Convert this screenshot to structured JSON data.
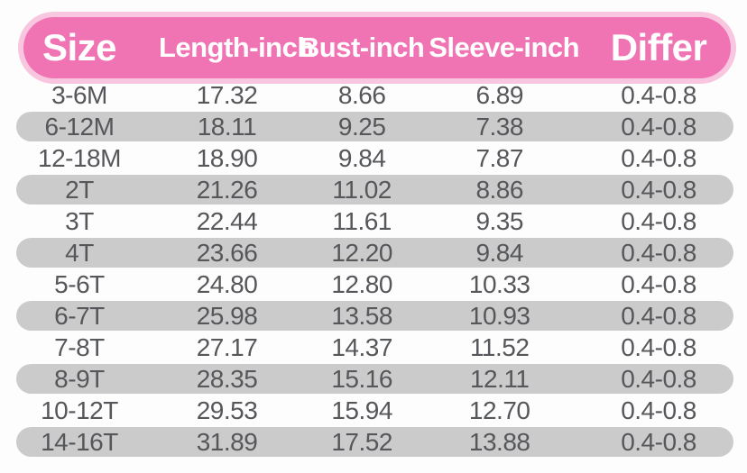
{
  "colors": {
    "header_bg": "#f073b4",
    "header_halo": "#f8c6df",
    "stripe_bg": "#cbcbcb",
    "text_color": "#56575a",
    "header_text": "#ffffff",
    "page_bg": "#fdfdfd"
  },
  "table": {
    "columns": [
      {
        "key": "size",
        "label": "Size"
      },
      {
        "key": "length",
        "label": "Length-inch"
      },
      {
        "key": "bust",
        "label": "Bust-inch"
      },
      {
        "key": "sleeve",
        "label": "Sleeve-inch"
      },
      {
        "key": "differ",
        "label": "Differ"
      }
    ],
    "rows": [
      {
        "size": "3-6M",
        "length": "17.32",
        "bust": "8.66",
        "sleeve": "6.89",
        "differ": "0.4-0.8"
      },
      {
        "size": "6-12M",
        "length": "18.11",
        "bust": "9.25",
        "sleeve": "7.38",
        "differ": "0.4-0.8"
      },
      {
        "size": "12-18M",
        "length": "18.90",
        "bust": "9.84",
        "sleeve": "7.87",
        "differ": "0.4-0.8"
      },
      {
        "size": "2T",
        "length": "21.26",
        "bust": "11.02",
        "sleeve": "8.86",
        "differ": "0.4-0.8"
      },
      {
        "size": "3T",
        "length": "22.44",
        "bust": "11.61",
        "sleeve": "9.35",
        "differ": "0.4-0.8"
      },
      {
        "size": "4T",
        "length": "23.66",
        "bust": "12.20",
        "sleeve": "9.84",
        "differ": "0.4-0.8"
      },
      {
        "size": "5-6T",
        "length": "24.80",
        "bust": "12.80",
        "sleeve": "10.33",
        "differ": "0.4-0.8"
      },
      {
        "size": "6-7T",
        "length": "25.98",
        "bust": "13.58",
        "sleeve": "10.93",
        "differ": "0.4-0.8"
      },
      {
        "size": "7-8T",
        "length": "27.17",
        "bust": "14.37",
        "sleeve": "11.52",
        "differ": "0.4-0.8"
      },
      {
        "size": "8-9T",
        "length": "28.35",
        "bust": "15.16",
        "sleeve": "12.11",
        "differ": "0.4-0.8"
      },
      {
        "size": "10-12T",
        "length": "29.53",
        "bust": "15.94",
        "sleeve": "12.70",
        "differ": "0.4-0.8"
      },
      {
        "size": "14-16T",
        "length": "31.89",
        "bust": "17.52",
        "sleeve": "13.88",
        "differ": "0.4-0.8"
      }
    ]
  },
  "chart_data": {
    "type": "table",
    "columns": [
      "Size",
      "Length-inch",
      "Bust-inch",
      "Sleeve-inch",
      "Differ"
    ],
    "rows": [
      [
        "3-6M",
        17.32,
        8.66,
        6.89,
        "0.4-0.8"
      ],
      [
        "6-12M",
        18.11,
        9.25,
        7.38,
        "0.4-0.8"
      ],
      [
        "12-18M",
        18.9,
        9.84,
        7.87,
        "0.4-0.8"
      ],
      [
        "2T",
        21.26,
        11.02,
        8.86,
        "0.4-0.8"
      ],
      [
        "3T",
        22.44,
        11.61,
        9.35,
        "0.4-0.8"
      ],
      [
        "4T",
        23.66,
        12.2,
        9.84,
        "0.4-0.8"
      ],
      [
        "5-6T",
        24.8,
        12.8,
        10.33,
        "0.4-0.8"
      ],
      [
        "6-7T",
        25.98,
        13.58,
        10.93,
        "0.4-0.8"
      ],
      [
        "7-8T",
        27.17,
        14.37,
        11.52,
        "0.4-0.8"
      ],
      [
        "8-9T",
        28.35,
        15.16,
        12.11,
        "0.4-0.8"
      ],
      [
        "10-12T",
        29.53,
        15.94,
        12.7,
        "0.4-0.8"
      ],
      [
        "14-16T",
        31.89,
        17.52,
        13.88,
        "0.4-0.8"
      ]
    ],
    "layout": {
      "header_style": "pink rounded pill",
      "row_style": "alternating white and gray rounded stripes",
      "grid": false
    }
  }
}
